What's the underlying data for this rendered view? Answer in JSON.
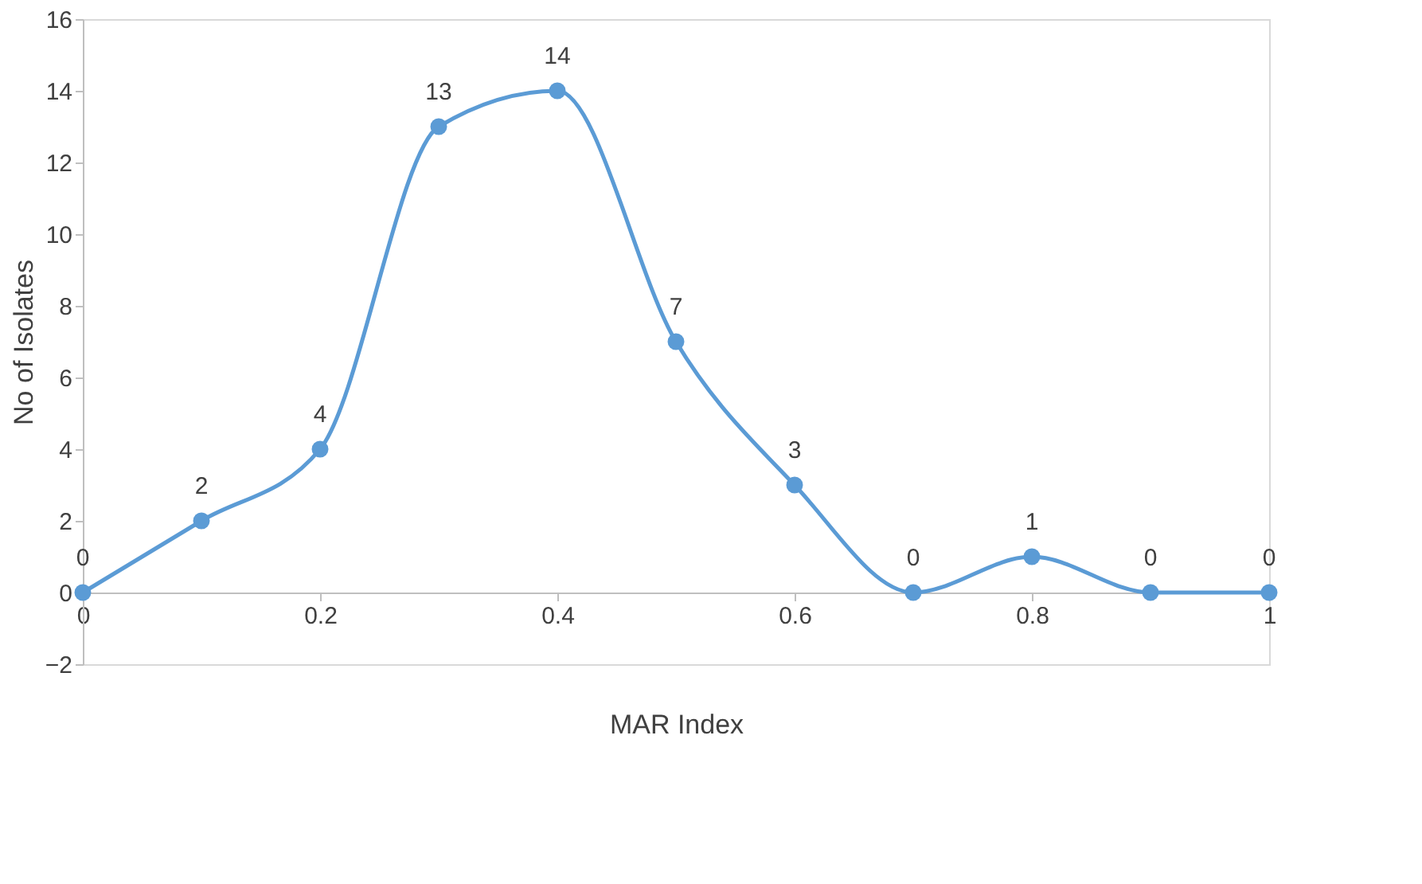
{
  "chart_data": {
    "type": "line",
    "xlabel": "MAR Index",
    "ylabel": "No of Isolates",
    "x": [
      0,
      0.1,
      0.2,
      0.3,
      0.4,
      0.5,
      0.6,
      0.7,
      0.8,
      0.9,
      1
    ],
    "series": [
      {
        "color": "#5b9bd5",
        "values": [
          0,
          2,
          4,
          13,
          14,
          7,
          3,
          0,
          1,
          0,
          0
        ]
      }
    ],
    "xlim": [
      0,
      1
    ],
    "xticks": [
      0,
      0.2,
      0.4,
      0.6,
      0.8,
      1
    ],
    "ylim": [
      -2,
      16
    ],
    "yticks": [
      -2,
      0,
      2,
      4,
      6,
      8,
      10,
      12,
      14,
      16
    ],
    "marker": "circle",
    "data_labels": true,
    "grid": false
  }
}
